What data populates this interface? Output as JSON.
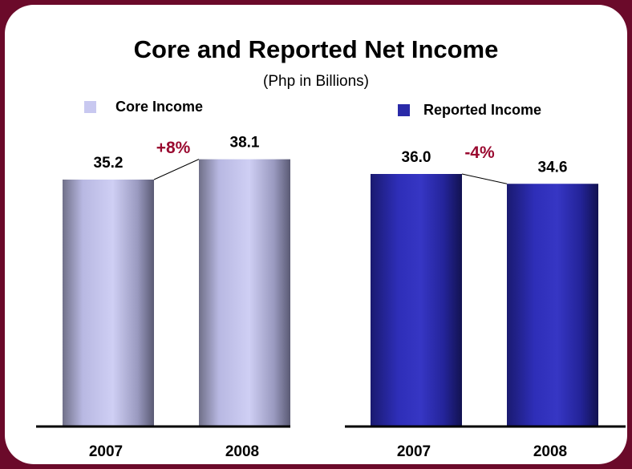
{
  "title": "Core and Reported Net Income",
  "subtitle": "(Php in Billions)",
  "colors": {
    "background": "#6b0a2a",
    "panel": "#ffffff",
    "core_series": "#c8c8f0",
    "reported_series": "#2a2aa8",
    "change_label": "#9a0a30"
  },
  "chart_data": [
    {
      "type": "bar",
      "series": [
        {
          "name": "Core Income",
          "values": [
            35.2,
            38.1
          ]
        }
      ],
      "categories": [
        "2007",
        "2008"
      ],
      "data_labels": [
        "35.2",
        "38.1"
      ],
      "change_label": "+8%",
      "legend": "top-left"
    },
    {
      "type": "bar",
      "series": [
        {
          "name": "Reported Income",
          "values": [
            36.0,
            34.6
          ]
        }
      ],
      "categories": [
        "2007",
        "2008"
      ],
      "data_labels": [
        "36.0",
        "34.6"
      ],
      "change_label": "-4%",
      "legend": "top-right"
    }
  ]
}
